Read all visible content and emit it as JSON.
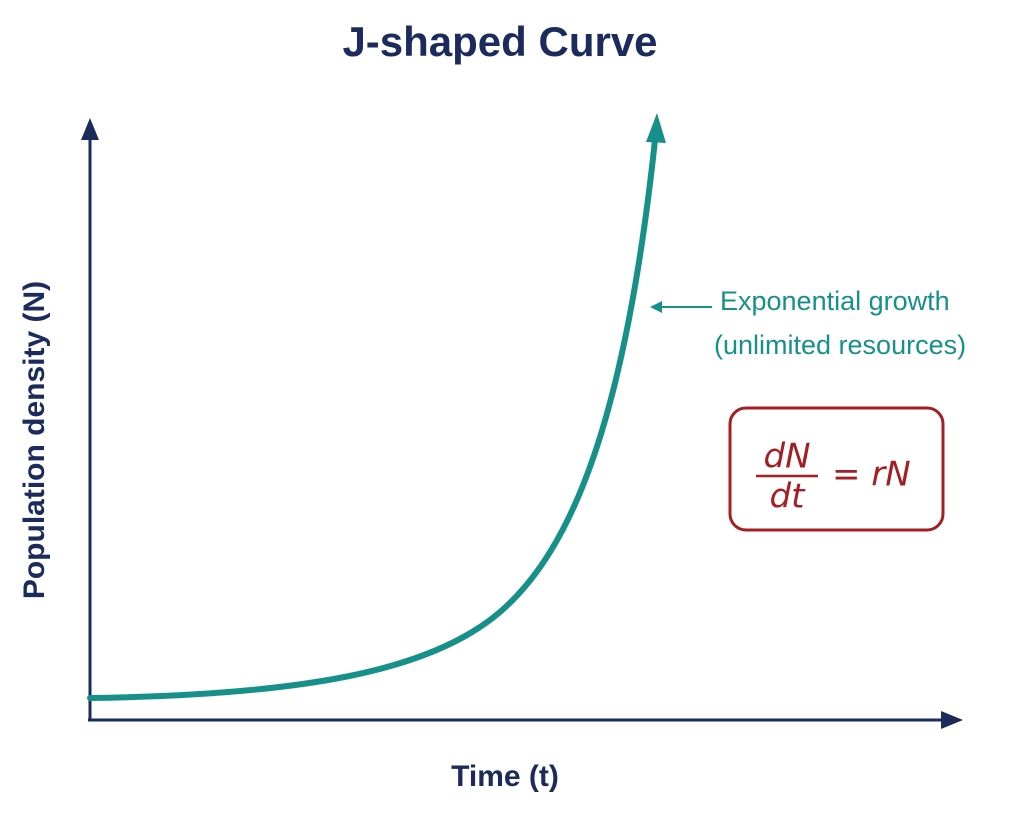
{
  "title": "J-shaped Curve",
  "y_axis_label": "Population density (N)",
  "x_axis_label": "Time (t)",
  "annotation": {
    "line1": "Exponential growth",
    "line2": "(unlimited resources)"
  },
  "equation": {
    "numerator": "dN",
    "denominator": "dt",
    "right_side": "= rN"
  }
}
